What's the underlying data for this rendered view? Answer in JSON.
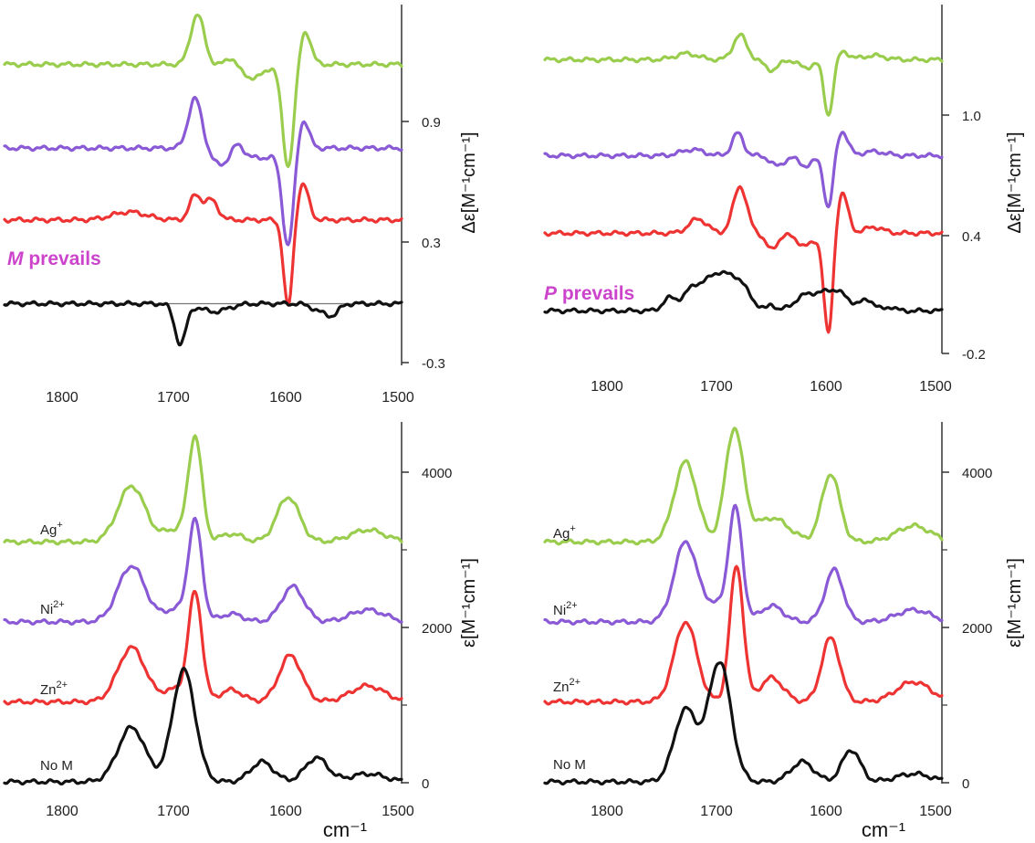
{
  "colors": {
    "green": "#9acd4d",
    "purple": "#8a5ad6",
    "red": "#ee3333",
    "black": "#111111",
    "axis": "#333333"
  },
  "chart_data": [
    {
      "id": "top-left",
      "type": "line",
      "title": "",
      "xlabel": "",
      "ylabel": "Δε[M⁻¹cm⁻¹]",
      "xlim": [
        1850,
        1500
      ],
      "ylim": [
        -0.3,
        1.5
      ],
      "x_ticks": [
        "1800",
        "1700",
        "1600",
        "1500"
      ],
      "y_ticks": [
        "0.9",
        "0.3",
        "-0.3"
      ],
      "annotation": {
        "prefix": "M",
        "text": " prevails"
      },
      "zero_line": true,
      "series": [
        {
          "name": "Ag+",
          "color": "green",
          "baseline": 1.2,
          "peaks": [
            [
              1680,
              0.25,
              6
            ],
            [
              1650,
              0.05,
              5
            ],
            [
              1615,
              0.05,
              8
            ],
            [
              1600,
              -0.5,
              5
            ],
            [
              1585,
              0.17,
              5
            ],
            [
              1625,
              -0.08,
              15
            ]
          ]
        },
        {
          "name": "Ni2+",
          "color": "purple",
          "baseline": 0.78,
          "peaks": [
            [
              1682,
              0.25,
              6
            ],
            [
              1660,
              -0.08,
              8
            ],
            [
              1645,
              0.05,
              5
            ],
            [
              1600,
              -0.48,
              5
            ],
            [
              1587,
              0.15,
              5
            ],
            [
              1625,
              -0.05,
              15
            ]
          ]
        },
        {
          "name": "Zn2+",
          "color": "red",
          "baseline": 0.42,
          "peaks": [
            [
              1740,
              0.04,
              15
            ],
            [
              1682,
              0.12,
              5
            ],
            [
              1668,
              0.1,
              6
            ],
            [
              1600,
              -0.44,
              4
            ],
            [
              1587,
              0.18,
              5
            ]
          ]
        },
        {
          "name": "No M",
          "color": "black",
          "baseline": 0.0,
          "peaks": [
            [
              1695,
              -0.2,
              5
            ],
            [
              1665,
              -0.04,
              12
            ],
            [
              1560,
              -0.04,
              5
            ],
            [
              1570,
              -0.04,
              8
            ]
          ]
        }
      ]
    },
    {
      "id": "top-right",
      "type": "line",
      "title": "",
      "xlabel": "",
      "ylabel": "Δε[M⁻¹cm⁻¹]",
      "xlim": [
        1850,
        1500
      ],
      "ylim": [
        -0.2,
        1.5
      ],
      "x_ticks": [
        "1800",
        "1700",
        "1600",
        "1500"
      ],
      "y_ticks": [
        "1.0",
        "0.4",
        "-0.2"
      ],
      "annotation": {
        "prefix": "P",
        "text": " prevails"
      },
      "zero_line": false,
      "series": [
        {
          "name": "Ag+",
          "color": "green",
          "baseline": 1.23,
          "peaks": [
            [
              1725,
              0.03,
              10
            ],
            [
              1678,
              0.12,
              6
            ],
            [
              1650,
              -0.05,
              6
            ],
            [
              1620,
              -0.04,
              6
            ],
            [
              1600,
              -0.27,
              4
            ],
            [
              1587,
              0.04,
              5
            ],
            [
              1560,
              0.02,
              10
            ]
          ]
        },
        {
          "name": "Ni2+",
          "color": "purple",
          "baseline": 0.76,
          "peaks": [
            [
              1720,
              0.03,
              10
            ],
            [
              1680,
              0.11,
              5
            ],
            [
              1645,
              -0.05,
              6
            ],
            [
              1620,
              -0.05,
              6
            ],
            [
              1600,
              -0.26,
              4
            ],
            [
              1588,
              0.12,
              5
            ],
            [
              1560,
              0.02,
              10
            ]
          ]
        },
        {
          "name": "Zn2+",
          "color": "red",
          "baseline": 0.38,
          "peaks": [
            [
              1715,
              0.07,
              8
            ],
            [
              1678,
              0.23,
              6
            ],
            [
              1650,
              -0.08,
              5
            ],
            [
              1620,
              -0.06,
              8
            ],
            [
              1600,
              -0.5,
              4
            ],
            [
              1588,
              0.2,
              5
            ],
            [
              1560,
              0.03,
              8
            ]
          ]
        },
        {
          "name": "No M",
          "color": "black",
          "baseline": 0.0,
          "peaks": [
            [
              1740,
              0.06,
              6
            ],
            [
              1720,
              0.1,
              8
            ],
            [
              1700,
              0.16,
              10
            ],
            [
              1680,
              0.14,
              10
            ],
            [
              1650,
              0.03,
              3
            ],
            [
              1620,
              0.07,
              10
            ],
            [
              1595,
              0.1,
              12
            ],
            [
              1565,
              0.05,
              6
            ],
            [
              1545,
              0.02,
              4
            ]
          ]
        }
      ]
    },
    {
      "id": "bottom-left",
      "type": "line",
      "title": "",
      "xlabel": "cm⁻¹",
      "ylabel": "ε[M⁻¹cm⁻¹]",
      "xlim": [
        1850,
        1500
      ],
      "ylim": [
        0,
        4500
      ],
      "x_ticks": [
        "1800",
        "1700",
        "1600",
        "1500"
      ],
      "y_ticks": [
        "4000",
        "2000",
        "0"
      ],
      "series": [
        {
          "name": "Ag+",
          "label_base": "Ag",
          "label_sup": "+",
          "color": "green",
          "baseline": 3000,
          "peaks": [
            [
              1738,
              700,
              12
            ],
            [
              1700,
              150,
              10
            ],
            [
              1682,
              1300,
              6
            ],
            [
              1650,
              100,
              10
            ],
            [
              1600,
              560,
              10
            ],
            [
              1530,
              150,
              15
            ]
          ]
        },
        {
          "name": "Ni2+",
          "label_base": "Ni",
          "label_sup": "2+",
          "color": "purple",
          "baseline": 2000,
          "peaks": [
            [
              1738,
              700,
              12
            ],
            [
              1700,
              150,
              10
            ],
            [
              1682,
              1250,
              6
            ],
            [
              1650,
              100,
              10
            ],
            [
              1596,
              440,
              10
            ],
            [
              1530,
              150,
              15
            ]
          ]
        },
        {
          "name": "Zn2+",
          "label_base": "Zn",
          "label_sup": "2+",
          "color": "red",
          "baseline": 1000,
          "peaks": [
            [
              1738,
              680,
              12
            ],
            [
              1700,
              150,
              10
            ],
            [
              1682,
              1350,
              6
            ],
            [
              1650,
              150,
              10
            ],
            [
              1598,
              580,
              10
            ],
            [
              1530,
              200,
              15
            ]
          ]
        },
        {
          "name": "No M",
          "label_base": "No M",
          "label_sup": "",
          "color": "black",
          "baseline": 0,
          "peaks": [
            [
              1738,
              680,
              12
            ],
            [
              1692,
              1400,
              10
            ],
            [
              1623,
              250,
              10
            ],
            [
              1575,
              300,
              10
            ],
            [
              1530,
              100,
              15
            ]
          ]
        }
      ]
    },
    {
      "id": "bottom-right",
      "type": "line",
      "title": "",
      "xlabel": "cm⁻¹",
      "ylabel": "ε[M⁻¹cm⁻¹]",
      "xlim": [
        1850,
        1500
      ],
      "ylim": [
        0,
        4500
      ],
      "x_ticks": [
        "1800",
        "1700",
        "1600",
        "1500"
      ],
      "y_ticks": [
        "4000",
        "2000",
        "0"
      ],
      "series": [
        {
          "name": "Ag+",
          "label_base": "Ag",
          "label_sup": "+",
          "color": "green",
          "baseline": 3000,
          "peaks": [
            [
              1726,
              1000,
              10
            ],
            [
              1683,
              1400,
              8
            ],
            [
              1650,
              300,
              15
            ],
            [
              1598,
              850,
              8
            ],
            [
              1525,
              200,
              15
            ]
          ]
        },
        {
          "name": "Ni2+",
          "label_base": "Ni",
          "label_sup": "2+",
          "color": "purple",
          "baseline": 2000,
          "peaks": [
            [
              1726,
              1000,
              10
            ],
            [
              1682,
              1400,
              6
            ],
            [
              1700,
              200,
              10
            ],
            [
              1650,
              200,
              10
            ],
            [
              1595,
              650,
              8
            ],
            [
              1525,
              150,
              15
            ]
          ]
        },
        {
          "name": "Zn2+",
          "label_base": "Zn",
          "label_sup": "2+",
          "color": "red",
          "baseline": 1000,
          "peaks": [
            [
              1726,
              1000,
              10
            ],
            [
              1681,
              1700,
              6
            ],
            [
              1650,
              300,
              10
            ],
            [
              1598,
              800,
              8
            ],
            [
              1525,
              250,
              15
            ]
          ]
        },
        {
          "name": "No M",
          "label_base": "No M",
          "label_sup": "",
          "color": "black",
          "baseline": 0,
          "peaks": [
            [
              1726,
              900,
              10
            ],
            [
              1696,
              1500,
              10
            ],
            [
              1623,
              250,
              10
            ],
            [
              1580,
              400,
              8
            ],
            [
              1525,
              100,
              15
            ]
          ]
        }
      ]
    }
  ]
}
